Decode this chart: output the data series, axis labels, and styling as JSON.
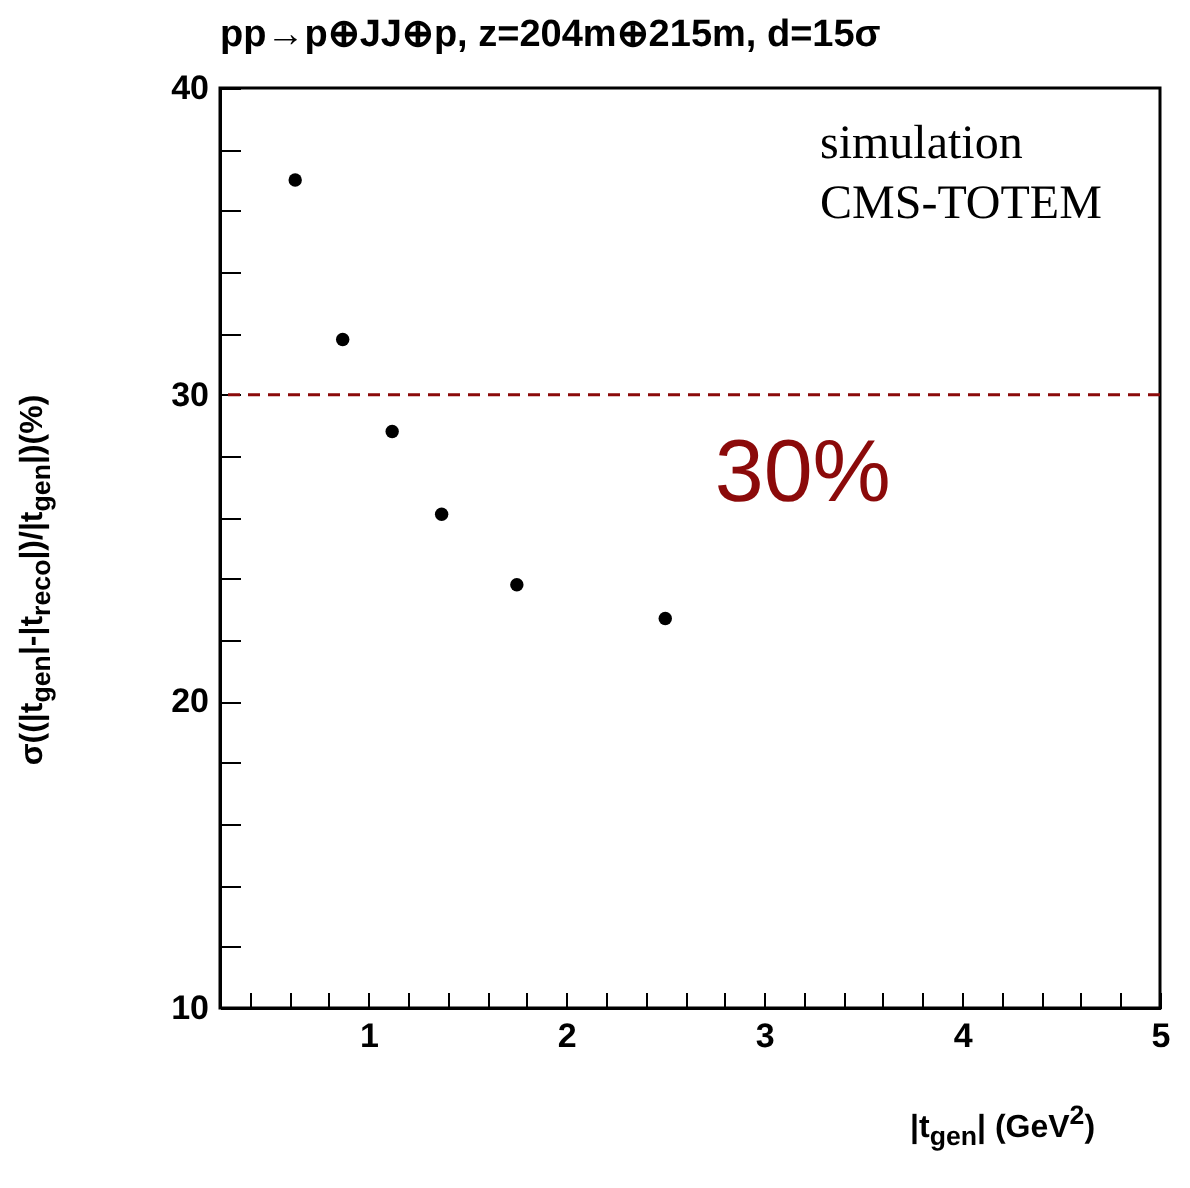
{
  "chart_data": {
    "type": "scatter",
    "title": "pp→p⊕JJ⊕p, z=204m⊕215m, d=15σ",
    "xlabel": "|t$_{gen}$| (GeV$^{2}$)",
    "ylabel": "σ((|t$_{gen}$|-|t$_{reco}$|)/|t$_{gen}$|)(%)",
    "annotations": [
      "simulation",
      "CMS-TOTEM"
    ],
    "x": [
      0.63,
      0.87,
      1.12,
      1.37,
      1.75,
      2.5
    ],
    "series": [
      {
        "color": "#000000",
        "values": [
          37.0,
          31.8,
          28.8,
          26.1,
          23.8,
          22.7
        ]
      }
    ],
    "marker": "circle",
    "grid": false,
    "xlim": [
      0.25,
      5
    ],
    "ylim": [
      10,
      40
    ],
    "xticks": [
      {
        "value": 0.4,
        "label": null
      },
      {
        "value": 0.6,
        "label": null
      },
      {
        "value": 0.8,
        "label": null
      },
      1,
      {
        "value": 1.2,
        "label": null
      },
      {
        "value": 1.4,
        "label": null
      },
      {
        "value": 1.6,
        "label": null
      },
      {
        "value": 1.8,
        "label": null
      },
      2,
      {
        "value": 2.2,
        "label": null
      },
      {
        "value": 2.4,
        "label": null
      },
      {
        "value": 2.6,
        "label": null
      },
      {
        "value": 2.8,
        "label": null
      },
      3,
      {
        "value": 3.2,
        "label": null
      },
      {
        "value": 3.4,
        "label": null
      },
      {
        "value": 3.6,
        "label": null
      },
      {
        "value": 3.8,
        "label": null
      },
      4,
      {
        "value": 4.2,
        "label": null
      },
      {
        "value": 4.4,
        "label": null
      },
      {
        "value": 4.6,
        "label": null
      },
      {
        "value": 4.8,
        "label": null
      },
      5
    ],
    "yticks": [
      10,
      {
        "value": 12,
        "label": null
      },
      {
        "value": 14,
        "label": null
      },
      {
        "value": 16,
        "label": null
      },
      {
        "value": 18,
        "label": null
      },
      20,
      {
        "value": 22,
        "label": null
      },
      {
        "value": 24,
        "label": null
      },
      {
        "value": 26,
        "label": null
      },
      {
        "value": 28,
        "label": null
      },
      30,
      {
        "value": 32,
        "label": null
      },
      {
        "value": 34,
        "label": null
      },
      {
        "value": 36,
        "label": null
      },
      {
        "value": 38,
        "label": null
      },
      40
    ],
    "ref_lines": [
      {
        "axis": "y",
        "value": 30,
        "label": "30%",
        "color": "#8b0a0a",
        "line_style": "dashed"
      }
    ]
  }
}
